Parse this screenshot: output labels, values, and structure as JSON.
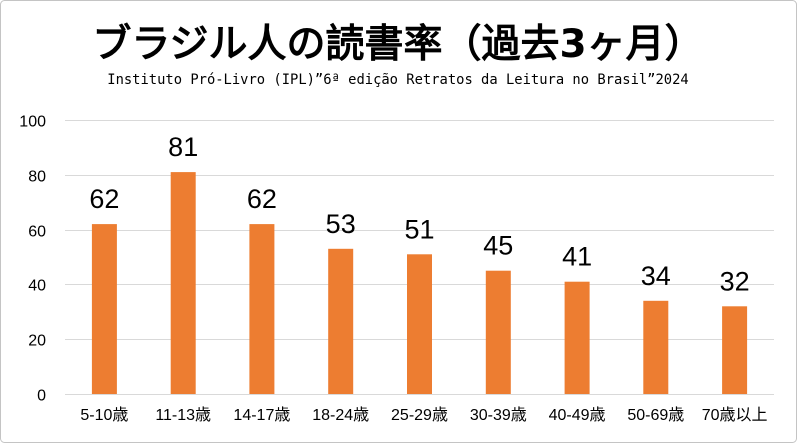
{
  "chart_data": {
    "type": "bar",
    "title": "ブラジル人の読書率（過去3ヶ月）",
    "subtitle": "Instituto Pró-Livro (IPL)”6ª edição Retratos da Leitura no Brasil”2024",
    "categories": [
      "5-10歳",
      "11-13歳",
      "14-17歳",
      "18-24歳",
      "25-29歳",
      "30-39歳",
      "40-49歳",
      "50-69歳",
      "70歳以上"
    ],
    "values": [
      62,
      81,
      62,
      53,
      51,
      45,
      41,
      34,
      32
    ],
    "xlabel": "",
    "ylabel": "",
    "ylim": [
      0,
      100
    ],
    "yticks": [
      0,
      20,
      40,
      60,
      80,
      100
    ],
    "grid": true,
    "legend": "none",
    "data_labels": true,
    "colors": {
      "bar": "#ED7D31",
      "grid": "#D9D9D9",
      "border": "#C4C4C4",
      "text": "#000000"
    }
  }
}
